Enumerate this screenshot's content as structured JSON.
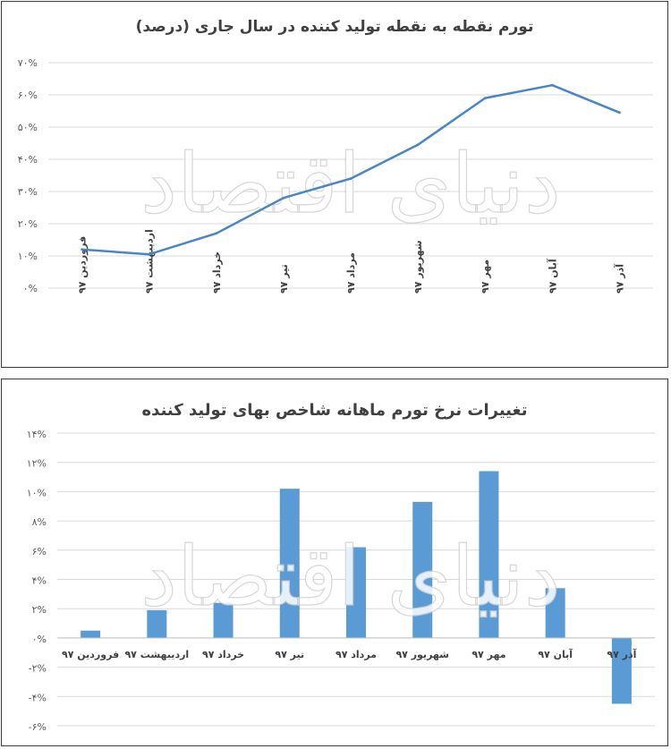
{
  "watermark": "دنیای اقتصاد",
  "chart_data": [
    {
      "type": "line",
      "title": "تورم نقطه به نقطه تولید کننده در سال جاری (درصد)",
      "categories": [
        "فروردین ۹۷",
        "اردیبهشت ۹۷",
        "خرداد ۹۷",
        "تیر ۹۷",
        "مرداد ۹۷",
        "شهریور ۹۷",
        "مهر ۹۷",
        "آبان ۹۷",
        "آذر ۹۷"
      ],
      "series": [
        {
          "values": [
            12,
            10.5,
            17,
            28,
            34,
            44.5,
            59,
            63,
            54.5
          ],
          "color": "#4a86c5"
        }
      ],
      "ylim": [
        0,
        70
      ],
      "yticks": [
        0,
        10,
        20,
        30,
        40,
        50,
        60,
        70
      ],
      "ytick_labels": [
        "۰%",
        "۱۰%",
        "۲۰%",
        "۳۰%",
        "۴۰%",
        "۵۰%",
        "۶۰%",
        "۷۰%"
      ],
      "grid": true
    },
    {
      "type": "bar",
      "title": "تغییرات نرخ تورم ماهانه شاخص بهای تولید کننده",
      "categories": [
        "فروردین ۹۷",
        "اردیبهشت ۹۷",
        "خرداد ۹۷",
        "تیر ۹۷",
        "مرداد ۹۷",
        "شهریور ۹۷",
        "مهر ۹۷",
        "آبان ۹۷",
        "آذر ۹۷"
      ],
      "series": [
        {
          "values": [
            0.5,
            1.9,
            2.4,
            10.2,
            6.2,
            9.3,
            11.4,
            3.4,
            -4.5
          ],
          "color": "#5b9bd5"
        }
      ],
      "ylim": [
        -6,
        14
      ],
      "yticks": [
        -6,
        -4,
        -2,
        0,
        2,
        4,
        6,
        8,
        10,
        12,
        14
      ],
      "ytick_labels": [
        "-۶%",
        "-۴%",
        "-۲%",
        "۰%",
        "۲%",
        "۴%",
        "۶%",
        "۸%",
        "۱۰%",
        "۱۲%",
        "۱۴%"
      ],
      "grid": true
    }
  ]
}
